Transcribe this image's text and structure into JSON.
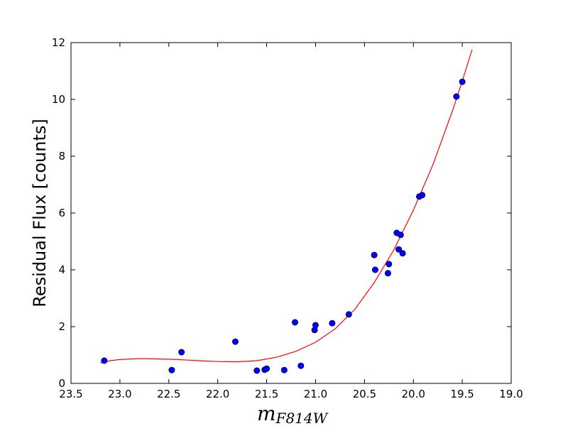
{
  "chart_data": {
    "type": "scatter",
    "title": "",
    "xlabel": {
      "main": "m",
      "sub": "F814W"
    },
    "ylabel": "Residual Flux   [counts]",
    "xlim": [
      23.5,
      19.0
    ],
    "ylim": [
      0,
      12
    ],
    "x_inverted": true,
    "xticks": [
      "23.5",
      "23.0",
      "22.5",
      "22.0",
      "21.5",
      "21.0",
      "20.5",
      "20.0",
      "19.5",
      "19.0"
    ],
    "yticks": [
      "0",
      "2",
      "4",
      "6",
      "8",
      "10",
      "12"
    ],
    "grid": false,
    "legend": "none",
    "series": [
      {
        "type": "scatter",
        "color": "#0000ff",
        "points": [
          {
            "x": 23.16,
            "y": 0.8
          },
          {
            "x": 22.47,
            "y": 0.47
          },
          {
            "x": 22.37,
            "y": 1.1
          },
          {
            "x": 21.82,
            "y": 1.47
          },
          {
            "x": 21.6,
            "y": 0.45
          },
          {
            "x": 21.52,
            "y": 0.48
          },
          {
            "x": 21.5,
            "y": 0.52
          },
          {
            "x": 21.32,
            "y": 0.47
          },
          {
            "x": 21.21,
            "y": 2.15
          },
          {
            "x": 21.15,
            "y": 0.62
          },
          {
            "x": 21.01,
            "y": 1.88
          },
          {
            "x": 21.0,
            "y": 2.05
          },
          {
            "x": 20.83,
            "y": 2.12
          },
          {
            "x": 20.66,
            "y": 2.43
          },
          {
            "x": 20.4,
            "y": 4.52
          },
          {
            "x": 20.39,
            "y": 4.0
          },
          {
            "x": 20.26,
            "y": 3.88
          },
          {
            "x": 20.25,
            "y": 4.2
          },
          {
            "x": 20.17,
            "y": 5.3
          },
          {
            "x": 20.15,
            "y": 4.72
          },
          {
            "x": 20.13,
            "y": 5.23
          },
          {
            "x": 20.11,
            "y": 4.58
          },
          {
            "x": 19.94,
            "y": 6.58
          },
          {
            "x": 19.91,
            "y": 6.63
          },
          {
            "x": 19.56,
            "y": 10.1
          },
          {
            "x": 19.5,
            "y": 10.62
          }
        ]
      },
      {
        "type": "line",
        "color": "#ff0000",
        "points": [
          {
            "x": 23.2,
            "y": 0.72
          },
          {
            "x": 23.1,
            "y": 0.8
          },
          {
            "x": 23.0,
            "y": 0.84
          },
          {
            "x": 22.8,
            "y": 0.87
          },
          {
            "x": 22.6,
            "y": 0.86
          },
          {
            "x": 22.4,
            "y": 0.84
          },
          {
            "x": 22.2,
            "y": 0.8
          },
          {
            "x": 22.0,
            "y": 0.77
          },
          {
            "x": 21.8,
            "y": 0.76
          },
          {
            "x": 21.6,
            "y": 0.8
          },
          {
            "x": 21.4,
            "y": 0.92
          },
          {
            "x": 21.2,
            "y": 1.13
          },
          {
            "x": 21.0,
            "y": 1.45
          },
          {
            "x": 20.8,
            "y": 1.92
          },
          {
            "x": 20.6,
            "y": 2.6
          },
          {
            "x": 20.4,
            "y": 3.55
          },
          {
            "x": 20.2,
            "y": 4.7
          },
          {
            "x": 20.0,
            "y": 6.1
          },
          {
            "x": 19.8,
            "y": 7.7
          },
          {
            "x": 19.6,
            "y": 9.6
          },
          {
            "x": 19.5,
            "y": 10.65
          },
          {
            "x": 19.4,
            "y": 11.75
          }
        ]
      }
    ]
  }
}
